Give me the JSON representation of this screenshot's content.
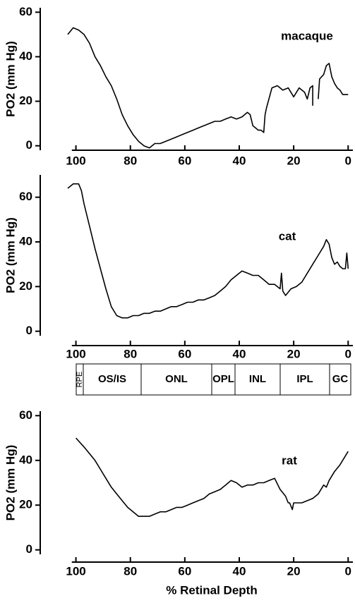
{
  "chart_data": [
    {
      "type": "line",
      "title": "macaque",
      "y_label": "PO2 (mm Hg)",
      "xlim": [
        103,
        -2
      ],
      "xticks": [
        100,
        80,
        60,
        40,
        20,
        0
      ],
      "ylim": [
        -2,
        62
      ],
      "yticks": [
        0,
        20,
        40,
        60
      ],
      "color": "#000000",
      "x": [
        103,
        101,
        99,
        97,
        95,
        93,
        91,
        89,
        87,
        85,
        83,
        81,
        79,
        77,
        75,
        73,
        71,
        69,
        67,
        65,
        63,
        61,
        59,
        57,
        55,
        53,
        51,
        49,
        47,
        45,
        43,
        41,
        39,
        37,
        36,
        35,
        34,
        33,
        32,
        31,
        30.5,
        30,
        28,
        26,
        24,
        22,
        20,
        18,
        16,
        15,
        14,
        13,
        13,
        12,
        11,
        10.5,
        9,
        8,
        7,
        6,
        5,
        4,
        3,
        2,
        1,
        0
      ],
      "values": [
        50,
        53,
        52,
        50,
        46,
        40,
        36,
        31,
        27,
        21,
        14,
        9,
        5,
        2,
        0,
        -1,
        1,
        1,
        2,
        3,
        4,
        5,
        6,
        7,
        8,
        9,
        10,
        11,
        11,
        12,
        13,
        12,
        13,
        15,
        14,
        9,
        8,
        7,
        7,
        6,
        14,
        17,
        26,
        27,
        25,
        26,
        22,
        26,
        24,
        21,
        26,
        27,
        18,
        null,
        21,
        30,
        32,
        36,
        37,
        31,
        28,
        26,
        25,
        23,
        23,
        23
      ]
    },
    {
      "type": "line",
      "title": "cat",
      "y_label": "PO2 (mm Hg)",
      "xlim": [
        103,
        -2
      ],
      "xticks": [
        100,
        80,
        60,
        40,
        20,
        0
      ],
      "ylim": [
        -2,
        70
      ],
      "yticks": [
        0,
        20,
        40,
        60
      ],
      "color": "#000000",
      "x": [
        103,
        101,
        99,
        98,
        97,
        95,
        93,
        91,
        89,
        87,
        85,
        83,
        81,
        79,
        77,
        75,
        73,
        71,
        69,
        67,
        65,
        63,
        61,
        59,
        57,
        55,
        53,
        51,
        49,
        47,
        45,
        43,
        41,
        39,
        37,
        35,
        33,
        31,
        29,
        27,
        25,
        24.5,
        24,
        23,
        21,
        19,
        17,
        15,
        13,
        11,
        9,
        8,
        7,
        6,
        5,
        4,
        3,
        2,
        1,
        0.5,
        0
      ],
      "values": [
        64,
        66,
        66,
        63,
        57,
        47,
        37,
        28,
        19,
        11,
        7,
        6,
        6,
        7,
        7,
        8,
        8,
        9,
        9,
        10,
        11,
        11,
        12,
        13,
        13,
        14,
        14,
        15,
        16,
        18,
        20,
        23,
        25,
        27,
        26,
        25,
        25,
        23,
        21,
        21,
        19,
        26,
        18,
        16,
        19,
        20,
        22,
        26,
        30,
        34,
        38,
        41,
        39,
        33,
        30,
        31,
        29,
        28,
        28,
        35,
        28
      ]
    },
    {
      "type": "line",
      "title": "rat",
      "y_label": "PO2 (mm Hg)",
      "x_label": "% Retinal Depth",
      "xlim": [
        103,
        -2
      ],
      "xticks": [
        100,
        80,
        60,
        40,
        20,
        0
      ],
      "ylim": [
        -2,
        62
      ],
      "yticks": [
        0,
        20,
        40,
        60
      ],
      "color": "#000000",
      "x": [
        100,
        97,
        95,
        93,
        91,
        89,
        87,
        85,
        83,
        81,
        79,
        77,
        75,
        73,
        71,
        69,
        67,
        65,
        63,
        61,
        59,
        57,
        55,
        53,
        51,
        49,
        47,
        45,
        43,
        41,
        39,
        37,
        35,
        33,
        31,
        29,
        27,
        25,
        23,
        22,
        21.5,
        20.5,
        20,
        19,
        17,
        15,
        13,
        11,
        9,
        8,
        7,
        5,
        3,
        1,
        0
      ],
      "values": [
        50,
        46,
        43,
        40,
        36,
        32,
        28,
        25,
        22,
        19,
        17,
        15,
        15,
        15,
        16,
        17,
        17,
        18,
        19,
        19,
        20,
        21,
        22,
        23,
        25,
        26,
        27,
        29,
        31,
        30,
        28,
        29,
        29,
        30,
        30,
        31,
        32,
        27,
        24,
        21,
        21,
        18,
        21,
        21,
        21,
        22,
        23,
        25,
        29,
        28,
        31,
        35,
        38,
        42,
        44
      ]
    }
  ],
  "layers": [
    "RPE",
    "OS/IS",
    "ONL",
    "OPL",
    "INL",
    "IPL",
    "GC"
  ]
}
